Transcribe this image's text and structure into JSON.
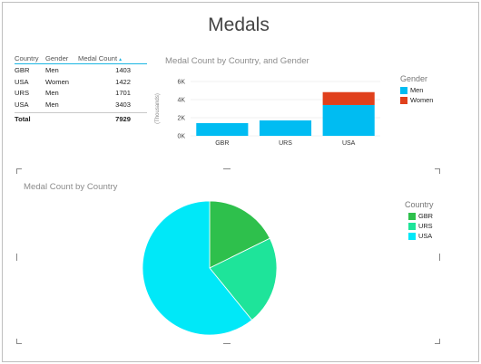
{
  "report": {
    "title": "Medals"
  },
  "table": {
    "headers": [
      "Country",
      "Gender",
      "Medal Count"
    ],
    "sort_indicator": "▲",
    "rows": [
      {
        "country": "GBR",
        "gender": "Men",
        "count": "1403"
      },
      {
        "country": "USA",
        "gender": "Women",
        "count": "1422"
      },
      {
        "country": "URS",
        "gender": "Men",
        "count": "1701"
      },
      {
        "country": "USA",
        "gender": "Men",
        "count": "3403"
      }
    ],
    "total_label": "Total",
    "total_value": "7929"
  },
  "bar_legend": {
    "title": "Gender",
    "items": [
      {
        "label": "Men",
        "color": "#00bcf2"
      },
      {
        "label": "Women",
        "color": "#e0401c"
      }
    ]
  },
  "pie_legend": {
    "title": "Country",
    "items": [
      {
        "label": "GBR",
        "color": "#2ec04c"
      },
      {
        "label": "URS",
        "color": "#1ee49a"
      },
      {
        "label": "USA",
        "color": "#00e8f8"
      }
    ]
  },
  "chart_data": [
    {
      "type": "bar",
      "stacked": true,
      "title": "Medal Count by Country, and Gender",
      "ylabel": "(Thousands)",
      "categories": [
        "GBR",
        "URS",
        "USA"
      ],
      "series": [
        {
          "name": "Men",
          "values": [
            1403,
            1701,
            3403
          ],
          "color": "#00bcf2"
        },
        {
          "name": "Women",
          "values": [
            0,
            0,
            1422
          ],
          "color": "#e0401c"
        }
      ],
      "ylim": [
        0,
        6000
      ],
      "yticks": [
        0,
        2000,
        4000,
        6000
      ],
      "ytick_labels": [
        "0K",
        "2K",
        "4K",
        "6K"
      ],
      "legend": "right"
    },
    {
      "type": "pie",
      "title": "Medal Count by Country",
      "labels": [
        "GBR",
        "URS",
        "USA"
      ],
      "values": [
        1403,
        1701,
        4825
      ],
      "colors": [
        "#2ec04c",
        "#1ee49a",
        "#00e8f8"
      ],
      "legend": "right"
    }
  ]
}
